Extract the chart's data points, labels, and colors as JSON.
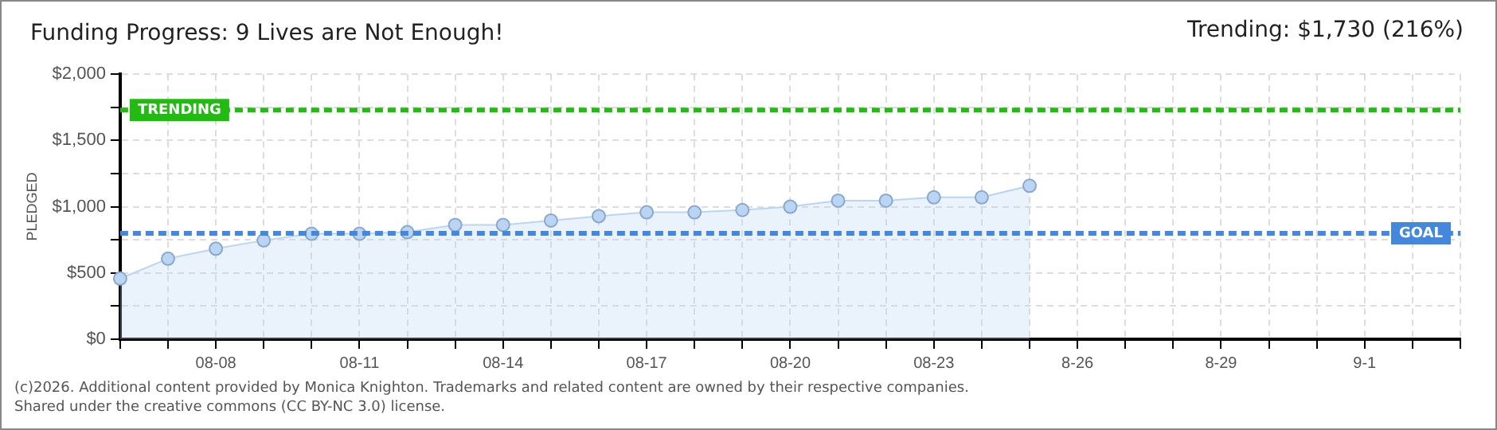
{
  "chart_data": {
    "type": "area",
    "title": "Funding Progress: 9 Lives are Not Enough!",
    "ylabel": "PLEDGED",
    "annotations": [
      "Trending: $1,730 (216%)",
      "(c)2026. Additional content provided by Monica Knighton. Trademarks and related content are owned by their respective companies.",
      "Shared under the creative commons (CC BY-NC 3.0) license."
    ],
    "categories": [
      null,
      null,
      "08-08",
      null,
      null,
      "08-11",
      null,
      null,
      "08-14",
      null,
      null,
      "08-17",
      null,
      null,
      "08-20",
      null,
      null,
      "08-23",
      null,
      null,
      "8-26",
      null,
      null,
      "8-29",
      null,
      null,
      "9-1",
      null,
      null
    ],
    "series": [
      {
        "color": "#b9d5f3",
        "values": [
          458,
          608,
          683,
          746,
          796,
          796,
          808,
          863,
          863,
          896,
          929,
          958,
          958,
          975,
          1000,
          1046,
          1046,
          1071,
          1071,
          1158,
          null,
          null,
          null,
          null,
          null,
          null,
          null,
          null,
          null
        ]
      }
    ],
    "ylim": [
      0,
      2000
    ],
    "yticks": [
      {
        "value": 0,
        "label": "$0"
      },
      {
        "value": 250,
        "label": null
      },
      {
        "value": 500,
        "label": "$500"
      },
      {
        "value": 750,
        "label": null
      },
      {
        "value": 1000,
        "label": "$1,000"
      },
      {
        "value": 1250,
        "label": null
      },
      {
        "value": 1500,
        "label": "$1,500"
      },
      {
        "value": 1750,
        "label": null
      },
      {
        "value": 2000,
        "label": "$2,000"
      }
    ],
    "ref_lines": [
      {
        "axis": "y",
        "value": 1730,
        "label": "TRENDING",
        "color": "#22bb11",
        "line_style": "dashed"
      },
      {
        "axis": "y",
        "value": 800,
        "label": "GOAL",
        "color": "#4488dd",
        "line_style": "dashed"
      }
    ],
    "grid": true,
    "legend": false,
    "marker": "circle"
  }
}
